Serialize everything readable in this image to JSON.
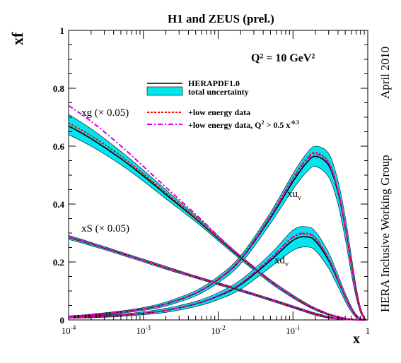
{
  "chart_data": {
    "type": "line",
    "title": "H1 and ZEUS (prel.)",
    "subtitle": "Q² = 10 GeV²",
    "ylabel": "xf",
    "xlabel": "x",
    "side_text_top": "April 2010",
    "side_text_bottom": "HERA Inclusive Working Group",
    "xscale": "log",
    "xlim": [
      0.0001,
      1
    ],
    "ylim": [
      0,
      1
    ],
    "x_ticks": [
      {
        "base": "10",
        "exp": "-4"
      },
      {
        "base": "10",
        "exp": "-3"
      },
      {
        "base": "10",
        "exp": "-2"
      },
      {
        "base": "10",
        "exp": "-1"
      },
      {
        "base": "1",
        "exp": ""
      }
    ],
    "y_ticks": [
      "0",
      "0.2",
      "0.4",
      "0.6",
      "0.8",
      "1"
    ],
    "legend": {
      "placement": "upper-right",
      "line_label": "HERAPDF1.0",
      "band_label": "total uncertainty",
      "dotted_label": "+low energy data",
      "dashdot_label_main": "+low energy data, Q",
      "dashdot_label_sup": "2",
      "dashdot_label_tail": " > 0.5 x",
      "dashdot_label_exp": "-0.3"
    },
    "curve_labels": {
      "xg": "xg (× 0.05)",
      "xS": "xS (× 0.05)",
      "xuv_main": "xu",
      "xuv_sub": "v",
      "xdv_main": "xd",
      "xdv_sub": "v"
    },
    "colors": {
      "band": "#00e5ee",
      "central": "#000000",
      "dotted": "#ff0000",
      "dashdot": "#dd00dd"
    },
    "x": [
      0.0001,
      0.0002,
      0.0005,
      0.001,
      0.002,
      0.005,
      0.01,
      0.02,
      0.05,
      0.1,
      0.15,
      0.2,
      0.3,
      0.4,
      0.5,
      0.6,
      0.7,
      0.8,
      0.9,
      0.95
    ],
    "series": [
      {
        "key": "xg",
        "central": [
          0.67,
          0.626,
          0.557,
          0.497,
          0.433,
          0.349,
          0.281,
          0.215,
          0.133,
          0.08,
          0.053,
          0.037,
          0.019,
          0.01,
          0.005,
          0.002,
          0.0008,
          0.0002,
          0.0,
          0.0
        ],
        "upper": [
          0.71,
          0.66,
          0.582,
          0.517,
          0.449,
          0.36,
          0.29,
          0.222,
          0.139,
          0.086,
          0.058,
          0.041,
          0.022,
          0.012,
          0.006,
          0.003,
          0.001,
          0.0003,
          0.0,
          0.0
        ],
        "lower": [
          0.64,
          0.6,
          0.536,
          0.479,
          0.418,
          0.339,
          0.273,
          0.208,
          0.127,
          0.075,
          0.049,
          0.033,
          0.016,
          0.008,
          0.004,
          0.0015,
          0.0005,
          0.0001,
          0.0,
          0.0
        ],
        "dotted": [
          0.68,
          0.636,
          0.566,
          0.504,
          0.439,
          0.353,
          0.284,
          0.217,
          0.134,
          0.081,
          0.054,
          0.038,
          0.02,
          0.011,
          0.005,
          0.002,
          0.0008,
          0.0002,
          0.0,
          0.0
        ],
        "dashdot": [
          0.74,
          0.686,
          0.601,
          0.53,
          0.458,
          0.365,
          0.29,
          0.219,
          0.134,
          0.081,
          0.054,
          0.038,
          0.02,
          0.011,
          0.005,
          0.002,
          0.0008,
          0.0002,
          0.0,
          0.0
        ]
      },
      {
        "key": "xS",
        "central": [
          0.285,
          0.262,
          0.23,
          0.205,
          0.18,
          0.148,
          0.125,
          0.102,
          0.07,
          0.045,
          0.03,
          0.02,
          0.009,
          0.004,
          0.002,
          0.001,
          0.0003,
          0.0,
          0.0,
          0.0
        ],
        "upper": [
          0.292,
          0.268,
          0.235,
          0.21,
          0.185,
          0.152,
          0.129,
          0.106,
          0.074,
          0.049,
          0.034,
          0.024,
          0.012,
          0.006,
          0.003,
          0.0015,
          0.0005,
          0.0,
          0.0,
          0.0
        ],
        "lower": [
          0.278,
          0.256,
          0.225,
          0.2,
          0.175,
          0.144,
          0.121,
          0.098,
          0.066,
          0.041,
          0.026,
          0.016,
          0.006,
          0.002,
          0.001,
          0.0005,
          0.0001,
          0.0,
          0.0,
          0.0
        ],
        "dotted": [
          0.285,
          0.262,
          0.23,
          0.205,
          0.18,
          0.148,
          0.125,
          0.103,
          0.071,
          0.046,
          0.031,
          0.021,
          0.01,
          0.004,
          0.002,
          0.001,
          0.0003,
          0.0,
          0.0,
          0.0
        ],
        "dashdot": [
          0.287,
          0.264,
          0.231,
          0.206,
          0.181,
          0.149,
          0.126,
          0.103,
          0.071,
          0.046,
          0.031,
          0.021,
          0.01,
          0.004,
          0.002,
          0.001,
          0.0003,
          0.0,
          0.0,
          0.0
        ]
      },
      {
        "key": "xuv",
        "central": [
          0.012,
          0.017,
          0.027,
          0.038,
          0.055,
          0.092,
          0.139,
          0.208,
          0.352,
          0.478,
          0.541,
          0.565,
          0.534,
          0.44,
          0.317,
          0.194,
          0.096,
          0.034,
          0.006,
          0.001
        ],
        "upper": [
          0.014,
          0.02,
          0.031,
          0.043,
          0.062,
          0.101,
          0.15,
          0.222,
          0.371,
          0.505,
          0.573,
          0.6,
          0.575,
          0.48,
          0.355,
          0.225,
          0.115,
          0.043,
          0.009,
          0.002
        ],
        "lower": [
          0.01,
          0.014,
          0.023,
          0.033,
          0.048,
          0.083,
          0.128,
          0.194,
          0.333,
          0.451,
          0.509,
          0.53,
          0.493,
          0.4,
          0.279,
          0.163,
          0.077,
          0.025,
          0.003,
          0.0
        ],
        "dotted": [
          0.012,
          0.017,
          0.027,
          0.038,
          0.055,
          0.093,
          0.141,
          0.212,
          0.36,
          0.49,
          0.555,
          0.578,
          0.544,
          0.448,
          0.322,
          0.196,
          0.097,
          0.034,
          0.006,
          0.001
        ],
        "dashdot": [
          0.012,
          0.017,
          0.027,
          0.038,
          0.055,
          0.093,
          0.14,
          0.21,
          0.357,
          0.486,
          0.55,
          0.573,
          0.54,
          0.445,
          0.32,
          0.195,
          0.096,
          0.034,
          0.006,
          0.001
        ]
      },
      {
        "key": "xdv",
        "central": [
          0.007,
          0.01,
          0.016,
          0.023,
          0.033,
          0.055,
          0.082,
          0.122,
          0.205,
          0.275,
          0.287,
          0.272,
          0.205,
          0.135,
          0.078,
          0.038,
          0.014,
          0.004,
          0.001,
          0.0
        ],
        "upper": [
          0.009,
          0.013,
          0.02,
          0.028,
          0.04,
          0.064,
          0.094,
          0.138,
          0.228,
          0.31,
          0.322,
          0.305,
          0.232,
          0.155,
          0.092,
          0.047,
          0.019,
          0.006,
          0.001,
          0.0
        ],
        "lower": [
          0.005,
          0.007,
          0.012,
          0.018,
          0.026,
          0.046,
          0.07,
          0.106,
          0.182,
          0.24,
          0.252,
          0.239,
          0.178,
          0.115,
          0.064,
          0.029,
          0.009,
          0.002,
          0.0,
          0.0
        ],
        "dotted": [
          0.007,
          0.01,
          0.016,
          0.023,
          0.033,
          0.056,
          0.084,
          0.126,
          0.212,
          0.285,
          0.297,
          0.281,
          0.211,
          0.139,
          0.08,
          0.039,
          0.014,
          0.004,
          0.001,
          0.0
        ],
        "dashdot": [
          0.007,
          0.01,
          0.016,
          0.023,
          0.033,
          0.056,
          0.084,
          0.126,
          0.213,
          0.287,
          0.299,
          0.283,
          0.212,
          0.14,
          0.08,
          0.039,
          0.014,
          0.004,
          0.001,
          0.0
        ]
      }
    ]
  }
}
